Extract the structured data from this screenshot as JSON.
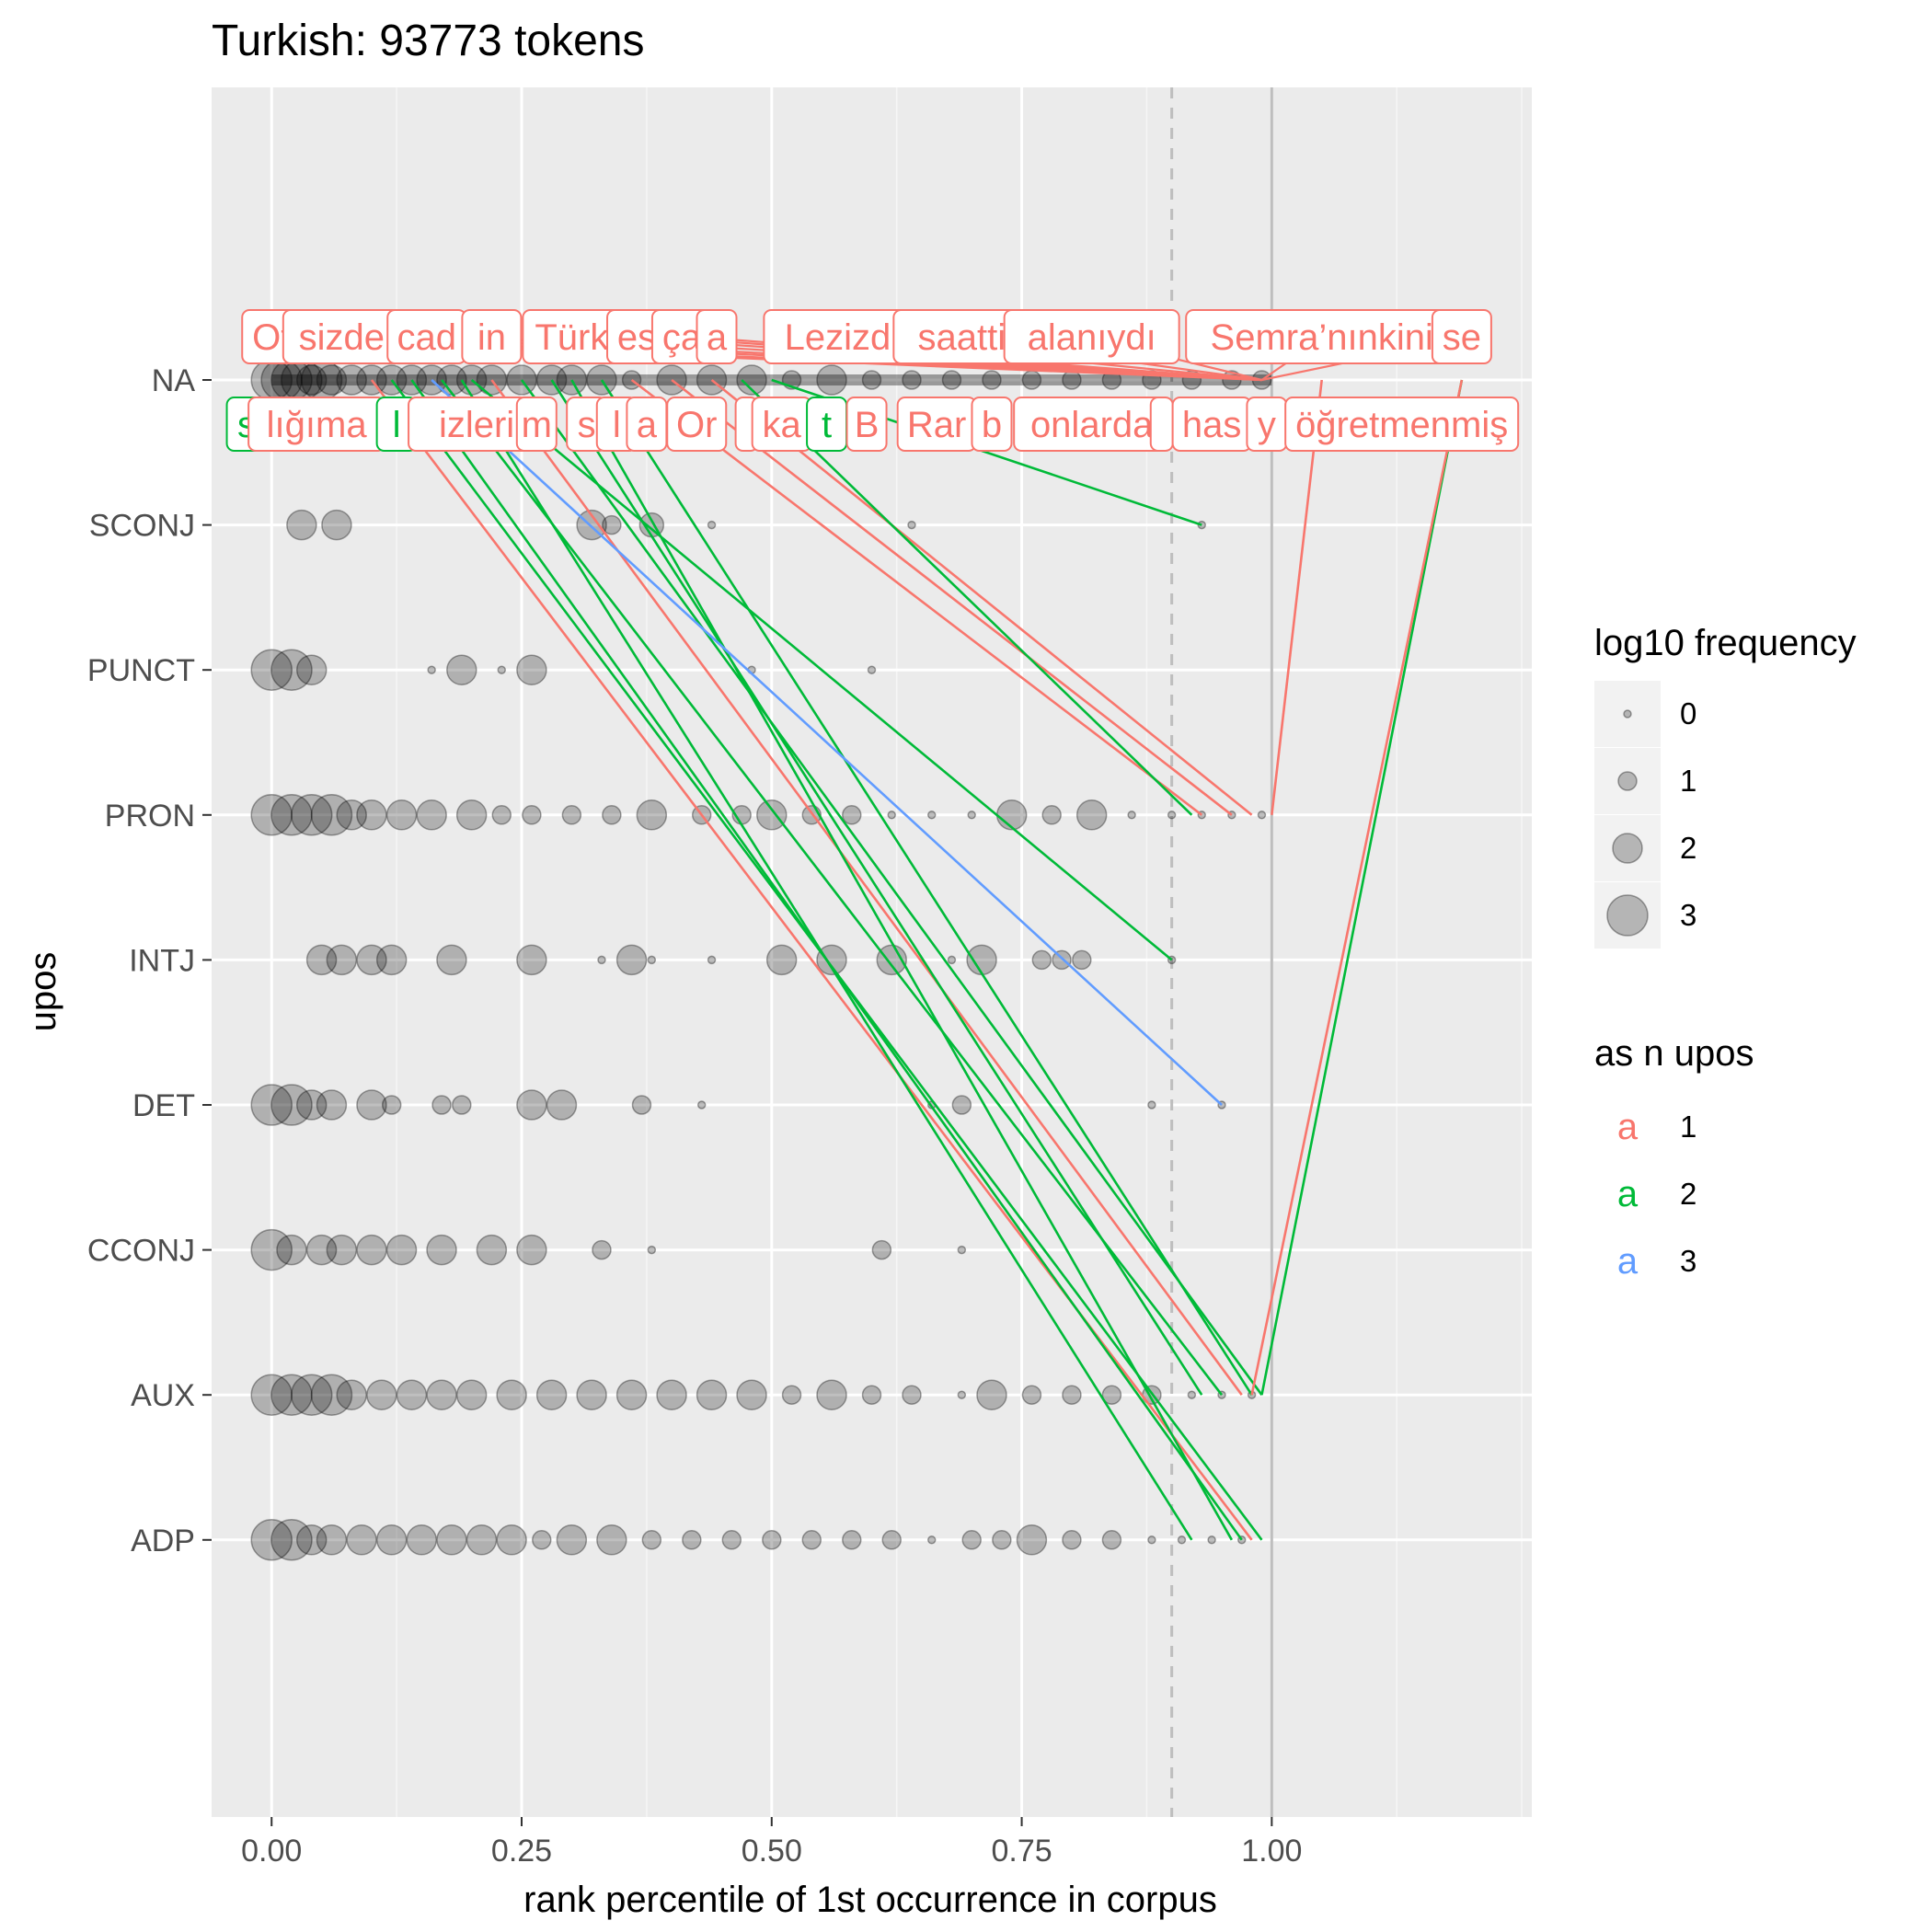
{
  "chart_data": {
    "type": "scatter",
    "title": "Turkish: 93773 tokens",
    "xlabel": "rank percentile of 1st occurrence in corpus",
    "ylabel": "upos",
    "xlim": [
      -0.06,
      1.26
    ],
    "x_ticks": [
      0,
      0.25,
      0.5,
      0.75,
      1.0
    ],
    "x_tick_labels": [
      "0.00",
      "0.25",
      "0.50",
      "0.75",
      "1.00"
    ],
    "categories": [
      "NA",
      "SCONJ",
      "PUNCT",
      "PRON",
      "INTJ",
      "DET",
      "CCONJ",
      "AUX",
      "ADP"
    ],
    "reference_lines": [
      {
        "x": 0.9,
        "style": "dashed"
      },
      {
        "x": 1.0,
        "style": "solid"
      }
    ],
    "grid": true,
    "points": {
      "NA": [
        [
          0.0,
          3
        ],
        [
          0.01,
          3
        ],
        [
          0.02,
          3
        ],
        [
          0.03,
          3
        ],
        [
          0.04,
          2
        ],
        [
          0.05,
          3
        ],
        [
          0.06,
          2
        ],
        [
          0.08,
          2
        ],
        [
          0.1,
          2
        ],
        [
          0.12,
          2
        ],
        [
          0.14,
          2
        ],
        [
          0.16,
          2
        ],
        [
          0.18,
          2
        ],
        [
          0.2,
          2
        ],
        [
          0.22,
          2
        ],
        [
          0.25,
          2
        ],
        [
          0.28,
          2
        ],
        [
          0.3,
          2
        ],
        [
          0.33,
          2
        ],
        [
          0.36,
          1
        ],
        [
          0.4,
          2
        ],
        [
          0.44,
          2
        ],
        [
          0.48,
          2
        ],
        [
          0.52,
          1
        ],
        [
          0.56,
          2
        ],
        [
          0.6,
          1
        ],
        [
          0.64,
          1
        ],
        [
          0.68,
          1
        ],
        [
          0.72,
          1
        ],
        [
          0.76,
          1
        ],
        [
          0.8,
          1
        ],
        [
          0.84,
          1
        ],
        [
          0.88,
          1
        ],
        [
          0.92,
          1
        ],
        [
          0.96,
          1
        ],
        [
          0.99,
          1
        ]
      ],
      "SCONJ": [
        [
          0.03,
          2
        ],
        [
          0.065,
          2
        ],
        [
          0.32,
          2
        ],
        [
          0.34,
          1
        ],
        [
          0.38,
          1.5
        ],
        [
          0.44,
          0
        ],
        [
          0.64,
          0
        ],
        [
          0.93,
          0
        ]
      ],
      "PUNCT": [
        [
          0.0,
          3
        ],
        [
          0.02,
          3
        ],
        [
          0.04,
          2
        ],
        [
          0.16,
          0
        ],
        [
          0.19,
          2
        ],
        [
          0.23,
          0
        ],
        [
          0.26,
          2
        ],
        [
          0.48,
          0
        ],
        [
          0.6,
          0
        ]
      ],
      "PRON": [
        [
          0.0,
          3
        ],
        [
          0.02,
          3
        ],
        [
          0.04,
          3
        ],
        [
          0.06,
          3
        ],
        [
          0.08,
          2
        ],
        [
          0.1,
          2
        ],
        [
          0.13,
          2
        ],
        [
          0.16,
          2
        ],
        [
          0.2,
          2
        ],
        [
          0.23,
          1
        ],
        [
          0.26,
          1
        ],
        [
          0.3,
          1
        ],
        [
          0.34,
          1
        ],
        [
          0.38,
          2
        ],
        [
          0.43,
          1
        ],
        [
          0.47,
          1
        ],
        [
          0.5,
          2
        ],
        [
          0.54,
          1
        ],
        [
          0.58,
          1
        ],
        [
          0.62,
          0
        ],
        [
          0.66,
          0
        ],
        [
          0.7,
          0
        ],
        [
          0.74,
          2
        ],
        [
          0.78,
          1
        ],
        [
          0.82,
          2
        ],
        [
          0.86,
          0
        ],
        [
          0.9,
          0
        ],
        [
          0.93,
          0
        ],
        [
          0.96,
          0
        ],
        [
          0.99,
          0
        ]
      ],
      "INTJ": [
        [
          0.05,
          2
        ],
        [
          0.07,
          2
        ],
        [
          0.1,
          2
        ],
        [
          0.12,
          2
        ],
        [
          0.18,
          2
        ],
        [
          0.26,
          2
        ],
        [
          0.33,
          0
        ],
        [
          0.36,
          2
        ],
        [
          0.38,
          0
        ],
        [
          0.44,
          0
        ],
        [
          0.51,
          2
        ],
        [
          0.56,
          2
        ],
        [
          0.62,
          2
        ],
        [
          0.68,
          0
        ],
        [
          0.71,
          2
        ],
        [
          0.77,
          1
        ],
        [
          0.79,
          1
        ],
        [
          0.81,
          1
        ],
        [
          0.9,
          0
        ]
      ],
      "DET": [
        [
          0.0,
          3
        ],
        [
          0.02,
          3
        ],
        [
          0.04,
          2
        ],
        [
          0.06,
          2
        ],
        [
          0.1,
          2
        ],
        [
          0.12,
          1
        ],
        [
          0.17,
          1
        ],
        [
          0.19,
          1
        ],
        [
          0.26,
          2
        ],
        [
          0.29,
          2
        ],
        [
          0.37,
          1
        ],
        [
          0.43,
          0
        ],
        [
          0.66,
          0
        ],
        [
          0.69,
          1
        ],
        [
          0.88,
          0
        ],
        [
          0.95,
          0
        ]
      ],
      "CCONJ": [
        [
          0.0,
          3
        ],
        [
          0.02,
          2
        ],
        [
          0.05,
          2
        ],
        [
          0.07,
          2
        ],
        [
          0.1,
          2
        ],
        [
          0.13,
          2
        ],
        [
          0.17,
          2
        ],
        [
          0.22,
          2
        ],
        [
          0.26,
          2
        ],
        [
          0.33,
          1
        ],
        [
          0.38,
          0
        ],
        [
          0.61,
          1
        ],
        [
          0.69,
          0
        ]
      ],
      "AUX": [
        [
          0.0,
          3
        ],
        [
          0.02,
          3
        ],
        [
          0.04,
          3
        ],
        [
          0.06,
          3
        ],
        [
          0.08,
          2
        ],
        [
          0.11,
          2
        ],
        [
          0.14,
          2
        ],
        [
          0.17,
          2
        ],
        [
          0.2,
          2
        ],
        [
          0.24,
          2
        ],
        [
          0.28,
          2
        ],
        [
          0.32,
          2
        ],
        [
          0.36,
          2
        ],
        [
          0.4,
          2
        ],
        [
          0.44,
          2
        ],
        [
          0.48,
          2
        ],
        [
          0.52,
          1
        ],
        [
          0.56,
          2
        ],
        [
          0.6,
          1
        ],
        [
          0.64,
          1
        ],
        [
          0.69,
          0
        ],
        [
          0.72,
          2
        ],
        [
          0.76,
          1
        ],
        [
          0.8,
          1
        ],
        [
          0.84,
          1
        ],
        [
          0.88,
          1
        ],
        [
          0.92,
          0
        ],
        [
          0.95,
          0
        ],
        [
          0.98,
          0
        ]
      ],
      "ADP": [
        [
          0.0,
          3
        ],
        [
          0.02,
          3
        ],
        [
          0.04,
          2
        ],
        [
          0.06,
          2
        ],
        [
          0.09,
          2
        ],
        [
          0.12,
          2
        ],
        [
          0.15,
          2
        ],
        [
          0.18,
          2
        ],
        [
          0.21,
          2
        ],
        [
          0.24,
          2
        ],
        [
          0.27,
          1
        ],
        [
          0.3,
          2
        ],
        [
          0.34,
          2
        ],
        [
          0.38,
          1
        ],
        [
          0.42,
          1
        ],
        [
          0.46,
          1
        ],
        [
          0.5,
          1
        ],
        [
          0.54,
          1
        ],
        [
          0.58,
          1
        ],
        [
          0.62,
          1
        ],
        [
          0.66,
          0
        ],
        [
          0.7,
          1
        ],
        [
          0.73,
          1
        ],
        [
          0.76,
          2
        ],
        [
          0.8,
          1
        ],
        [
          0.84,
          1
        ],
        [
          0.88,
          0
        ],
        [
          0.91,
          0
        ],
        [
          0.94,
          0
        ],
        [
          0.97,
          0
        ]
      ]
    },
    "labels_top": [
      {
        "text": "Ot",
        "x": 0.0,
        "n": 1,
        "target_cat": "AUX",
        "target_x": 0.99
      },
      {
        "text": "sizde",
        "x": 0.07,
        "n": 1,
        "target_cat": "NA",
        "target_x": 0.99
      },
      {
        "text": "cad",
        "x": 0.155,
        "n": 1,
        "target_cat": "NA",
        "target_x": 0.99
      },
      {
        "text": "in",
        "x": 0.22,
        "n": 1,
        "target_cat": "NA",
        "target_x": 0.99
      },
      {
        "text": "Türk",
        "x": 0.3,
        "n": 1,
        "target_cat": "NA",
        "target_x": 0.99
      },
      {
        "text": "es",
        "x": 0.365,
        "n": 1,
        "target_cat": "NA",
        "target_x": 0.99
      },
      {
        "text": "ça",
        "x": 0.41,
        "n": 1,
        "target_cat": "NA",
        "target_x": 0.99
      },
      {
        "text": "a",
        "x": 0.445,
        "n": 1,
        "target_cat": "NA",
        "target_x": 0.99
      },
      {
        "text": "Lezizdi",
        "x": 0.57,
        "n": 1,
        "target_cat": "NA",
        "target_x": 0.99
      },
      {
        "text": "saatti",
        "x": 0.69,
        "n": 1,
        "target_cat": "NA",
        "target_x": 0.99
      },
      {
        "text": "alanıydı",
        "x": 0.82,
        "n": 1,
        "target_cat": "NA",
        "target_x": 0.99
      },
      {
        "text": "Semra’nınkini",
        "x": 1.05,
        "n": 1,
        "target_cat": "NA",
        "target_x": 0.99
      },
      {
        "text": "se",
        "x": 1.19,
        "n": 1,
        "target_cat": "AUX",
        "target_x": 0.99
      }
    ],
    "labels_bottom": [
      {
        "text": "s",
        "x": -0.025,
        "n": 2
      },
      {
        "text": "lığıma",
        "x": 0.045,
        "n": 1
      },
      {
        "text": "l",
        "x": 0.125,
        "n": 2
      },
      {
        "text": "izleri",
        "x": 0.205,
        "n": 1
      },
      {
        "text": "m",
        "x": 0.265,
        "n": 1
      },
      {
        "text": "s",
        "x": 0.315,
        "n": 1
      },
      {
        "text": "l",
        "x": 0.345,
        "n": 1
      },
      {
        "text": "a",
        "x": 0.375,
        "n": 1
      },
      {
        "text": "Or",
        "x": 0.425,
        "n": 1
      },
      {
        "text": "",
        "x": 0.475,
        "n": 1
      },
      {
        "text": "ka",
        "x": 0.51,
        "n": 1
      },
      {
        "text": "t",
        "x": 0.555,
        "n": 2
      },
      {
        "text": "B",
        "x": 0.595,
        "n": 1
      },
      {
        "text": "Rar",
        "x": 0.665,
        "n": 1
      },
      {
        "text": "b",
        "x": 0.72,
        "n": 1
      },
      {
        "text": "onlarda",
        "x": 0.82,
        "n": 1
      },
      {
        "text": "",
        "x": 0.89,
        "n": 1
      },
      {
        "text": "has",
        "x": 0.94,
        "n": 1
      },
      {
        "text": "y",
        "x": 0.995,
        "n": 1
      },
      {
        "text": "öğretmenmiş",
        "x": 1.13,
        "n": 1
      }
    ],
    "connections": [
      {
        "from": [
          0.1,
          "NA"
        ],
        "to": [
          0.98,
          "ADP"
        ],
        "n": 1
      },
      {
        "from": [
          0.12,
          "NA"
        ],
        "to": [
          0.99,
          "ADP"
        ],
        "n": 2
      },
      {
        "from": [
          0.14,
          "NA"
        ],
        "to": [
          0.97,
          "ADP"
        ],
        "n": 2
      },
      {
        "from": [
          0.17,
          "NA"
        ],
        "to": [
          0.95,
          "AUX"
        ],
        "n": 2
      },
      {
        "from": [
          0.19,
          "NA"
        ],
        "to": [
          0.92,
          "ADP"
        ],
        "n": 2
      },
      {
        "from": [
          0.22,
          "NA"
        ],
        "to": [
          0.97,
          "AUX"
        ],
        "n": 1
      },
      {
        "from": [
          0.25,
          "NA"
        ],
        "to": [
          0.99,
          "AUX"
        ],
        "n": 2
      },
      {
        "from": [
          0.28,
          "NA"
        ],
        "to": [
          0.93,
          "AUX"
        ],
        "n": 2
      },
      {
        "from": [
          0.3,
          "NA"
        ],
        "to": [
          0.96,
          "ADP"
        ],
        "n": 2
      },
      {
        "from": [
          0.33,
          "NA"
        ],
        "to": [
          0.98,
          "AUX"
        ],
        "n": 2
      },
      {
        "from": [
          0.36,
          "NA"
        ],
        "to": [
          0.93,
          "PRON"
        ],
        "n": 1
      },
      {
        "from": [
          0.4,
          "NA"
        ],
        "to": [
          0.96,
          "PRON"
        ],
        "n": 1
      },
      {
        "from": [
          0.44,
          "NA"
        ],
        "to": [
          0.98,
          "PRON"
        ],
        "n": 1
      },
      {
        "from": [
          0.47,
          "NA"
        ],
        "to": [
          0.92,
          "PRON"
        ],
        "n": 2
      },
      {
        "from": [
          0.16,
          "NA"
        ],
        "to": [
          0.95,
          "DET"
        ],
        "n": 3
      },
      {
        "from": [
          0.2,
          "NA"
        ],
        "to": [
          0.9,
          "INTJ"
        ],
        "n": 2
      },
      {
        "from": [
          0.5,
          "NA"
        ],
        "to": [
          0.93,
          "SCONJ"
        ],
        "n": 2
      },
      {
        "from": [
          1.05,
          "NA"
        ],
        "to": [
          1.0,
          "PRON"
        ],
        "n": 1
      },
      {
        "from": [
          1.19,
          "NA"
        ],
        "to": [
          0.99,
          "AUX"
        ],
        "n": 2
      },
      {
        "from": [
          1.19,
          "NA"
        ],
        "to": [
          0.98,
          "AUX"
        ],
        "n": 1
      }
    ],
    "legend": [
      {
        "title": "log10 frequency",
        "type": "size",
        "entries": [
          {
            "label": "0",
            "value": 0
          },
          {
            "label": "1",
            "value": 1
          },
          {
            "label": "2",
            "value": 2
          },
          {
            "label": "3",
            "value": 3
          }
        ]
      },
      {
        "title": "as n upos",
        "type": "color",
        "glyph": "a",
        "entries": [
          {
            "label": "1",
            "color": "#F8766D"
          },
          {
            "label": "2",
            "color": "#00BA38"
          },
          {
            "label": "3",
            "color": "#619CFF"
          }
        ]
      }
    ],
    "legend_position": "right",
    "colors": {
      "n1": "#F8766D",
      "n2": "#00BA38",
      "n3": "#619CFF"
    }
  }
}
